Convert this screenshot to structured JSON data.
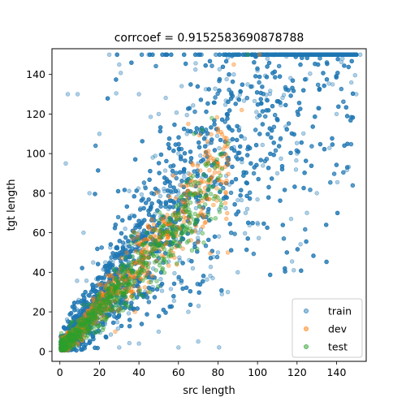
{
  "chart_data": {
    "type": "scatter",
    "title": "corrcoef = 0.9152583690878788",
    "xlabel": "src length",
    "ylabel": "tgt length",
    "xlim": [
      -4,
      155
    ],
    "ylim": [
      -5,
      153
    ],
    "xticks": [
      0,
      20,
      40,
      60,
      80,
      100,
      120,
      140
    ],
    "yticks": [
      0,
      20,
      40,
      60,
      80,
      100,
      120,
      140
    ],
    "legend_position": "lower-right",
    "grid": false,
    "series": [
      {
        "name": "train",
        "color": "#1f77b4",
        "alpha": 0.35,
        "approx_points": 6000,
        "distribution": "dense wedge from origin, roughly y ≈ 1.3x with wide spread, capped at 150",
        "points": [
          [
            2,
            2
          ],
          [
            5,
            4
          ],
          [
            8,
            9
          ],
          [
            10,
            12
          ],
          [
            15,
            18
          ],
          [
            20,
            25
          ],
          [
            25,
            30
          ],
          [
            30,
            38
          ],
          [
            35,
            45
          ],
          [
            40,
            52
          ],
          [
            45,
            60
          ],
          [
            50,
            65
          ],
          [
            55,
            72
          ],
          [
            60,
            80
          ],
          [
            65,
            90
          ],
          [
            70,
            95
          ],
          [
            75,
            105
          ],
          [
            80,
            112
          ],
          [
            85,
            120
          ],
          [
            90,
            128
          ],
          [
            95,
            135
          ],
          [
            100,
            142
          ],
          [
            105,
            148
          ],
          [
            110,
            150
          ],
          [
            115,
            150
          ],
          [
            120,
            150
          ],
          [
            140,
            150
          ],
          [
            147,
            150
          ],
          [
            12,
            60
          ],
          [
            15,
            80
          ],
          [
            20,
            110
          ],
          [
            25,
            150
          ],
          [
            30,
            145
          ],
          [
            40,
            130
          ],
          [
            50,
            120
          ],
          [
            60,
            100
          ],
          [
            70,
            60
          ],
          [
            80,
            50
          ],
          [
            90,
            40
          ],
          [
            85,
            30
          ],
          [
            100,
            65
          ],
          [
            110,
            90
          ],
          [
            120,
            100
          ],
          [
            130,
            80
          ],
          [
            140,
            120
          ],
          [
            150,
            130
          ],
          [
            125,
            70
          ],
          [
            117,
            67
          ],
          [
            94,
            70
          ],
          [
            82,
            29
          ],
          [
            65,
            20
          ],
          [
            50,
            10
          ],
          [
            40,
            4
          ],
          [
            30,
            2
          ],
          [
            60,
            2
          ],
          [
            70,
            5
          ],
          [
            72,
            88
          ],
          [
            88,
            140
          ],
          [
            33,
            62
          ],
          [
            47,
            98
          ],
          [
            23,
            45
          ],
          [
            3,
            95
          ],
          [
            4,
            130
          ],
          [
            9,
            130
          ],
          [
            138,
            135
          ],
          [
            143,
            148
          ],
          [
            152,
            150
          ]
        ]
      },
      {
        "name": "dev",
        "color": "#ff7f0e",
        "alpha": 0.4,
        "approx_points": 600,
        "distribution": "concentrated along y ≈ 1.1x up to ~90",
        "points": [
          [
            3,
            3
          ],
          [
            6,
            6
          ],
          [
            10,
            11
          ],
          [
            15,
            17
          ],
          [
            20,
            22
          ],
          [
            25,
            28
          ],
          [
            30,
            33
          ],
          [
            35,
            40
          ],
          [
            40,
            45
          ],
          [
            45,
            50
          ],
          [
            50,
            55
          ],
          [
            55,
            60
          ],
          [
            58,
            70
          ],
          [
            62,
            72
          ],
          [
            70,
            80
          ],
          [
            75,
            95
          ],
          [
            85,
            50
          ],
          [
            92,
            122
          ],
          [
            101,
            150
          ],
          [
            88,
            145
          ],
          [
            65,
            115
          ],
          [
            45,
            35
          ],
          [
            38,
            20
          ],
          [
            28,
            10
          ],
          [
            18,
            20
          ],
          [
            12,
            14
          ]
        ]
      },
      {
        "name": "test",
        "color": "#2ca02c",
        "alpha": 0.4,
        "approx_points": 600,
        "distribution": "concentrated along y ≈ 1.05x up to ~90",
        "points": [
          [
            2,
            2
          ],
          [
            5,
            5
          ],
          [
            8,
            9
          ],
          [
            12,
            14
          ],
          [
            16,
            18
          ],
          [
            20,
            22
          ],
          [
            24,
            27
          ],
          [
            28,
            32
          ],
          [
            32,
            38
          ],
          [
            36,
            42
          ],
          [
            40,
            46
          ],
          [
            44,
            50
          ],
          [
            48,
            54
          ],
          [
            52,
            60
          ],
          [
            56,
            66
          ],
          [
            60,
            70
          ],
          [
            66,
            80
          ],
          [
            70,
            85
          ],
          [
            78,
            95
          ],
          [
            85,
            105
          ],
          [
            95,
            150
          ],
          [
            68,
            110
          ],
          [
            72,
            112
          ],
          [
            64,
            60
          ],
          [
            55,
            48
          ],
          [
            46,
            35
          ],
          [
            42,
            28
          ],
          [
            30,
            20
          ],
          [
            22,
            12
          ],
          [
            38,
            60
          ]
        ]
      }
    ]
  }
}
